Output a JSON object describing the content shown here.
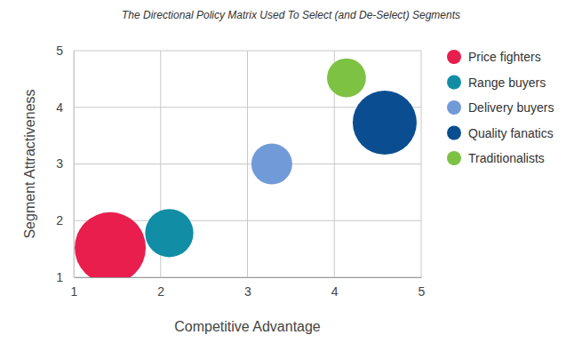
{
  "chart_data": {
    "type": "bubble",
    "title": "The Directional Policy Matrix Used To Select (and De-Select) Segments",
    "x_label": "Competitive Advantage",
    "y_label": "Segment Attractiveness",
    "xlim": [
      1,
      5
    ],
    "ylim": [
      1,
      5
    ],
    "xticks": [
      1,
      2,
      3,
      4,
      5
    ],
    "yticks": [
      1,
      2,
      3,
      4,
      5
    ],
    "grid": true,
    "legend": "right",
    "series": [
      {
        "name": "Price fighters",
        "color": "#e91e4d",
        "x": [
          1.42
        ],
        "values": [
          1.52
        ],
        "size": [
          100
        ]
      },
      {
        "name": "Range buyers",
        "color": "#118ea5",
        "x": [
          2.1
        ],
        "values": [
          1.78
        ],
        "size": [
          46
        ]
      },
      {
        "name": "Delivery buyers",
        "color": "#719bd8",
        "x": [
          3.28
        ],
        "values": [
          3.0
        ],
        "size": [
          33
        ]
      },
      {
        "name": "Quality fanatics",
        "color": "#0a4e91",
        "x": [
          4.58
        ],
        "values": [
          3.73
        ],
        "size": [
          81
        ]
      },
      {
        "name": "Traditionalists",
        "color": "#7dc243",
        "x": [
          4.14
        ],
        "values": [
          4.52
        ],
        "size": [
          30
        ]
      }
    ]
  }
}
